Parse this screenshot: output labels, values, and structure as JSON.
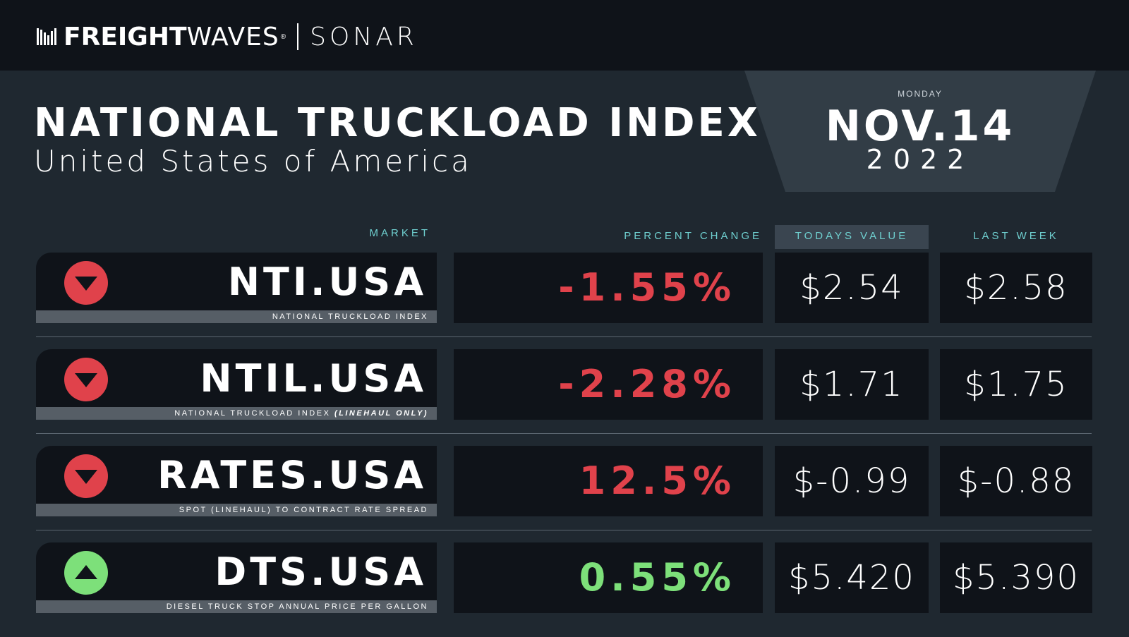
{
  "brand": {
    "freight": "FREIGHT",
    "waves": "WAVES",
    "reg": "®",
    "product": "SONAR"
  },
  "header": {
    "title": "NATIONAL TRUCKLOAD INDEX",
    "subtitle": "United States of America"
  },
  "date": {
    "day": "MONDAY",
    "main": "NOV.14",
    "year": "2022"
  },
  "columns": {
    "market": "MARKET",
    "percent_change": "PERCENT CHANGE",
    "todays_value": "TODAYS VALUE",
    "last_week": "LAST WEEK"
  },
  "colors": {
    "down": "#e0424b",
    "up": "#7de07a",
    "accent": "#6fd0d0"
  },
  "rows": [
    {
      "code": "NTI.USA",
      "desc": "NATIONAL TRUCKLOAD INDEX",
      "desc_italic": "",
      "direction": "down",
      "arrow_icon": "arrow-down-icon",
      "percent": "-1.55%",
      "today": "$2.54",
      "last_week": "$2.58"
    },
    {
      "code": "NTIL.USA",
      "desc": "NATIONAL TRUCKLOAD INDEX ",
      "desc_italic": "(LINEHAUL ONLY)",
      "direction": "down",
      "arrow_icon": "arrow-down-icon",
      "percent": "-2.28%",
      "today": "$1.71",
      "last_week": "$1.75"
    },
    {
      "code": "RATES.USA",
      "desc": "SPOT (LINEHAUL) TO CONTRACT RATE SPREAD",
      "desc_italic": "",
      "direction": "down",
      "arrow_icon": "arrow-down-icon",
      "percent": "12.5%",
      "today": "$-0.99",
      "last_week": "$-0.88"
    },
    {
      "code": "DTS.USA",
      "desc": "DIESEL TRUCK STOP ANNUAL PRICE PER GALLON",
      "desc_italic": "",
      "direction": "up",
      "arrow_icon": "arrow-up-icon",
      "percent": "0.55%",
      "today": "$5.420",
      "last_week": "$5.390"
    }
  ]
}
